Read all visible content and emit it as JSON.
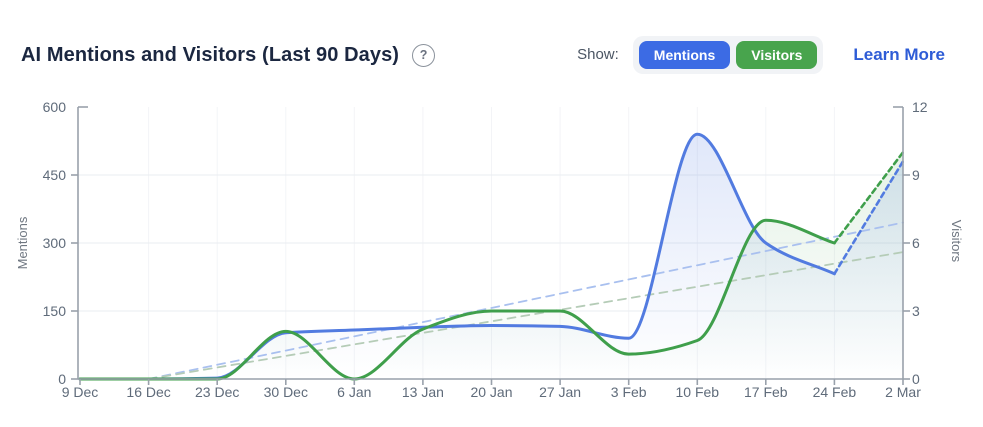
{
  "header": {
    "title": "AI Mentions and Visitors (Last 90 Days)",
    "help_glyph": "?",
    "show_label": "Show:",
    "legend_buttons": [
      {
        "label": "Mentions",
        "color": "#3c6be4"
      },
      {
        "label": "Visitors",
        "color": "#48a44d"
      }
    ],
    "learn_more_label": "Learn More",
    "learn_more_color": "#2e5cd6"
  },
  "chart_data": {
    "type": "line",
    "title": "AI Mentions and Visitors (Last 90 Days)",
    "x_labels": [
      "9 Dec",
      "16 Dec",
      "23 Dec",
      "30 Dec",
      "6 Jan",
      "13 Jan",
      "20 Jan",
      "27 Jan",
      "3 Feb",
      "10 Feb",
      "17 Feb",
      "24 Feb",
      "2 Mar"
    ],
    "left_axis": {
      "label": "Mentions",
      "ticks": [
        0,
        150,
        300,
        450,
        600
      ],
      "range": [
        0,
        600
      ]
    },
    "right_axis": {
      "label": "Visitors",
      "ticks": [
        0,
        3,
        6,
        9,
        12
      ],
      "range": [
        0,
        12
      ]
    },
    "grid": true,
    "legend_position": "top-right-buttons",
    "axis_color": "#99a1ab",
    "grid_color_h": "#eaedf1",
    "grid_color_v": "#f3f4f7",
    "tick_text_color": "#5f6b7a",
    "series": [
      {
        "name": "Mentions",
        "axis": "left",
        "style": "solid",
        "color": "#527be0",
        "fill_top": "rgba(82,123,224,0.20)",
        "fill_bottom": "rgba(82,123,224,0)",
        "values": [
          0,
          0,
          2,
          102,
          108,
          114,
          118,
          116,
          90,
          540,
          300,
          232
        ],
        "forecast": {
          "x_label": "2 Mar",
          "value": 480,
          "style": "dashed"
        }
      },
      {
        "name": "Visitors",
        "axis": "right",
        "style": "solid",
        "color": "#3f9f4b",
        "fill_top": "rgba(63,159,75,0.16)",
        "fill_bottom": "rgba(63,159,75,0)",
        "values": [
          0,
          0,
          0,
          2.1,
          0,
          2.2,
          3,
          3,
          1.1,
          1.7,
          7,
          6
        ],
        "forecast": {
          "x_label": "2 Mar",
          "value": 10,
          "style": "dashed"
        }
      }
    ],
    "trend_lines": [
      {
        "name": "Mentions trend",
        "axis": "left",
        "color": "#a9c0ef",
        "from": {
          "x_label": "16 Dec",
          "value": 0
        },
        "to": {
          "x_label": "2 Mar",
          "value": 345
        }
      },
      {
        "name": "Visitors trend",
        "axis": "right",
        "color": "#b5ccb7",
        "from": {
          "x_label": "16 Dec",
          "value": 0
        },
        "to": {
          "x_label": "2 Mar",
          "value": 5.6
        }
      }
    ]
  }
}
